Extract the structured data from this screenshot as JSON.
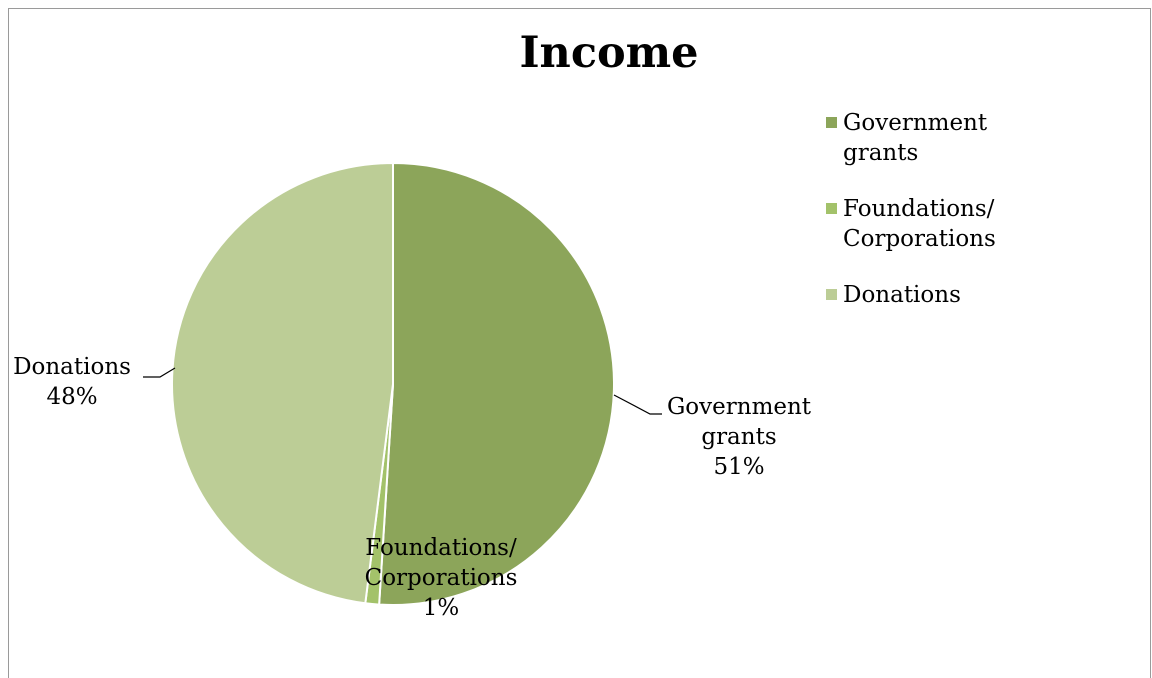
{
  "chart_data": {
    "type": "pie",
    "title": "Income",
    "categories": [
      "Government grants",
      "Foundations/ Corporations",
      "Donations"
    ],
    "values": [
      51,
      1,
      48
    ],
    "unit": "%",
    "colors": [
      "#8ca55a",
      "#a3c26a",
      "#bccd96"
    ],
    "legend": {
      "placement": "right",
      "entries": [
        {
          "label_lines": [
            "Government grants"
          ]
        },
        {
          "label_lines": [
            "Foundations/",
            "Corporations"
          ]
        },
        {
          "label_lines": [
            "Donations"
          ]
        }
      ]
    },
    "data_labels": [
      {
        "lines": [
          "Government",
          "grants",
          "51%"
        ]
      },
      {
        "lines": [
          "Foundations/",
          "Corporations",
          "1%"
        ]
      },
      {
        "lines": [
          "Donations",
          "48%"
        ]
      }
    ]
  }
}
